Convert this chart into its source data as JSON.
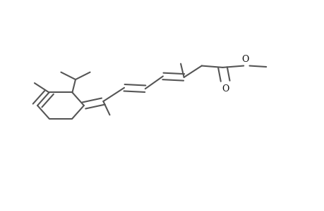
{
  "title": "",
  "bg_color": "#ffffff",
  "line_color": "#888888",
  "line_width": 1.5,
  "bond_color": "#555555"
}
